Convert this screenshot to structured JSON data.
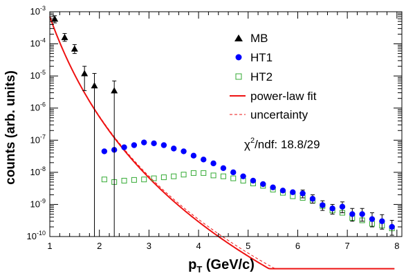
{
  "chart_data": {
    "type": "scatter",
    "title": "",
    "xlabel": "p_T (GeV/c)",
    "xlabel_main": "p",
    "xlabel_sub": "T",
    "xlabel_rest": " (GeV/c)",
    "ylabel": "counts (arb. units)",
    "xlim": [
      1,
      8.1
    ],
    "ylim": [
      1e-10,
      0.001
    ],
    "yscale": "log",
    "grid": false,
    "legend_position": "top-right",
    "x_ticks": [
      "1",
      "2",
      "3",
      "4",
      "5",
      "6",
      "7",
      "8"
    ],
    "y_ticks": [
      {
        "base": "10",
        "exp": "-10"
      },
      {
        "base": "10",
        "exp": "-9"
      },
      {
        "base": "10",
        "exp": "-8"
      },
      {
        "base": "10",
        "exp": "-7"
      },
      {
        "base": "10",
        "exp": "-6"
      },
      {
        "base": "10",
        "exp": "-5"
      },
      {
        "base": "10",
        "exp": "-4"
      },
      {
        "base": "10",
        "exp": "-3"
      }
    ],
    "series": [
      {
        "name": "MB",
        "marker": "triangle",
        "color": "#000000",
        "points": [
          {
            "x": 1.1,
            "y": 0.0006,
            "ylo": 0.00045,
            "yhi": 0.00075
          },
          {
            "x": 1.3,
            "y": 0.00016,
            "ylo": 0.00012,
            "yhi": 0.00021
          },
          {
            "x": 1.5,
            "y": 7e-05,
            "ylo": 5e-05,
            "yhi": 9.5e-05
          },
          {
            "x": 1.7,
            "y": 1.2e-05,
            "ylo": 3.5e-06,
            "yhi": 2e-05
          },
          {
            "x": 1.9,
            "y": 5e-06,
            "ylo": 1e-10,
            "yhi": 1.2e-05
          },
          {
            "x": 2.3,
            "y": 3.5e-06,
            "ylo": 1e-10,
            "yhi": 7e-06
          }
        ]
      },
      {
        "name": "HT1",
        "marker": "circle",
        "color": "#0000ff",
        "points": [
          {
            "x": 2.1,
            "y": 4.5e-08
          },
          {
            "x": 2.3,
            "y": 5e-08
          },
          {
            "x": 2.5,
            "y": 6e-08
          },
          {
            "x": 2.7,
            "y": 7e-08
          },
          {
            "x": 2.9,
            "y": 8.5e-08
          },
          {
            "x": 3.1,
            "y": 8e-08
          },
          {
            "x": 3.3,
            "y": 7e-08
          },
          {
            "x": 3.5,
            "y": 5.5e-08
          },
          {
            "x": 3.7,
            "y": 4.5e-08
          },
          {
            "x": 3.9,
            "y": 3.3e-08
          },
          {
            "x": 4.1,
            "y": 2.5e-08
          },
          {
            "x": 4.3,
            "y": 1.9e-08
          },
          {
            "x": 4.5,
            "y": 1.35e-08
          },
          {
            "x": 4.7,
            "y": 1e-08
          },
          {
            "x": 4.9,
            "y": 7.5e-09
          },
          {
            "x": 5.1,
            "y": 5.5e-09
          },
          {
            "x": 5.3,
            "y": 4.3e-09
          },
          {
            "x": 5.5,
            "y": 3.4e-09
          },
          {
            "x": 5.7,
            "y": 2.7e-09
          },
          {
            "x": 5.9,
            "y": 2.4e-09
          },
          {
            "x": 6.1,
            "y": 2.2e-09,
            "ylo": 1.6e-09,
            "yhi": 2.8e-09
          },
          {
            "x": 6.3,
            "y": 1.5e-09,
            "ylo": 1.1e-09,
            "yhi": 2e-09
          },
          {
            "x": 6.5,
            "y": 9.5e-10,
            "ylo": 6.5e-10,
            "yhi": 1.3e-09
          },
          {
            "x": 6.7,
            "y": 7.5e-10,
            "ylo": 5e-10,
            "yhi": 1e-09
          },
          {
            "x": 6.9,
            "y": 8.5e-10,
            "ylo": 5.5e-10,
            "yhi": 1.2e-09
          },
          {
            "x": 7.1,
            "y": 5e-10,
            "ylo": 3e-10,
            "yhi": 7.5e-10
          },
          {
            "x": 7.3,
            "y": 5e-10,
            "ylo": 3e-10,
            "yhi": 7.5e-10
          },
          {
            "x": 7.5,
            "y": 3.5e-10,
            "ylo": 2e-10,
            "yhi": 5.5e-10
          },
          {
            "x": 7.7,
            "y": 3e-10,
            "ylo": 1.7e-10,
            "yhi": 4.8e-10
          },
          {
            "x": 7.9,
            "y": 2e-10,
            "ylo": 1.1e-10,
            "yhi": 3.2e-10
          }
        ]
      },
      {
        "name": "HT2",
        "marker": "open-square",
        "color": "#33aa33",
        "points": [
          {
            "x": 2.1,
            "y": 6e-09
          },
          {
            "x": 2.3,
            "y": 5e-09
          },
          {
            "x": 2.5,
            "y": 5.5e-09
          },
          {
            "x": 2.7,
            "y": 5.8e-09
          },
          {
            "x": 2.9,
            "y": 6e-09
          },
          {
            "x": 3.1,
            "y": 6.5e-09
          },
          {
            "x": 3.3,
            "y": 7e-09
          },
          {
            "x": 3.5,
            "y": 7.5e-09
          },
          {
            "x": 3.7,
            "y": 8.5e-09
          },
          {
            "x": 3.9,
            "y": 9.5e-09
          },
          {
            "x": 4.1,
            "y": 9.5e-09
          },
          {
            "x": 4.3,
            "y": 8e-09
          },
          {
            "x": 4.5,
            "y": 7.5e-09
          },
          {
            "x": 4.7,
            "y": 6.5e-09
          },
          {
            "x": 4.9,
            "y": 5.5e-09
          },
          {
            "x": 5.1,
            "y": 4.5e-09
          },
          {
            "x": 5.3,
            "y": 3.8e-09
          },
          {
            "x": 5.5,
            "y": 2.9e-09
          },
          {
            "x": 5.7,
            "y": 2.3e-09
          },
          {
            "x": 5.9,
            "y": 1.8e-09
          },
          {
            "x": 6.1,
            "y": 1.6e-09
          },
          {
            "x": 6.3,
            "y": 1.3e-09
          },
          {
            "x": 6.5,
            "y": 9e-10
          },
          {
            "x": 6.7,
            "y": 6.5e-10
          },
          {
            "x": 6.9,
            "y": 5.5e-10
          },
          {
            "x": 7.1,
            "y": 3.8e-10
          },
          {
            "x": 7.3,
            "y": 3.2e-10
          },
          {
            "x": 7.5,
            "y": 2.5e-10
          },
          {
            "x": 7.7,
            "y": 2.2e-10
          },
          {
            "x": 7.9,
            "y": 1.8e-10
          }
        ]
      },
      {
        "name": "power-law fit",
        "line": "solid",
        "color": "#ee1111",
        "model": {
          "A": 0.0007,
          "x0": 1.0,
          "p": 0.1,
          "n": 11.4
        }
      },
      {
        "name": "uncertainty",
        "line": "dashed",
        "color": "#ee1111",
        "model": {
          "A": 0.0007,
          "x0": 1.0,
          "p": 0.1,
          "n": 11.1
        }
      }
    ],
    "annotation": {
      "prefix": "χ",
      "sup": "2",
      "suffix": "/ndf: 18.8/29"
    }
  }
}
